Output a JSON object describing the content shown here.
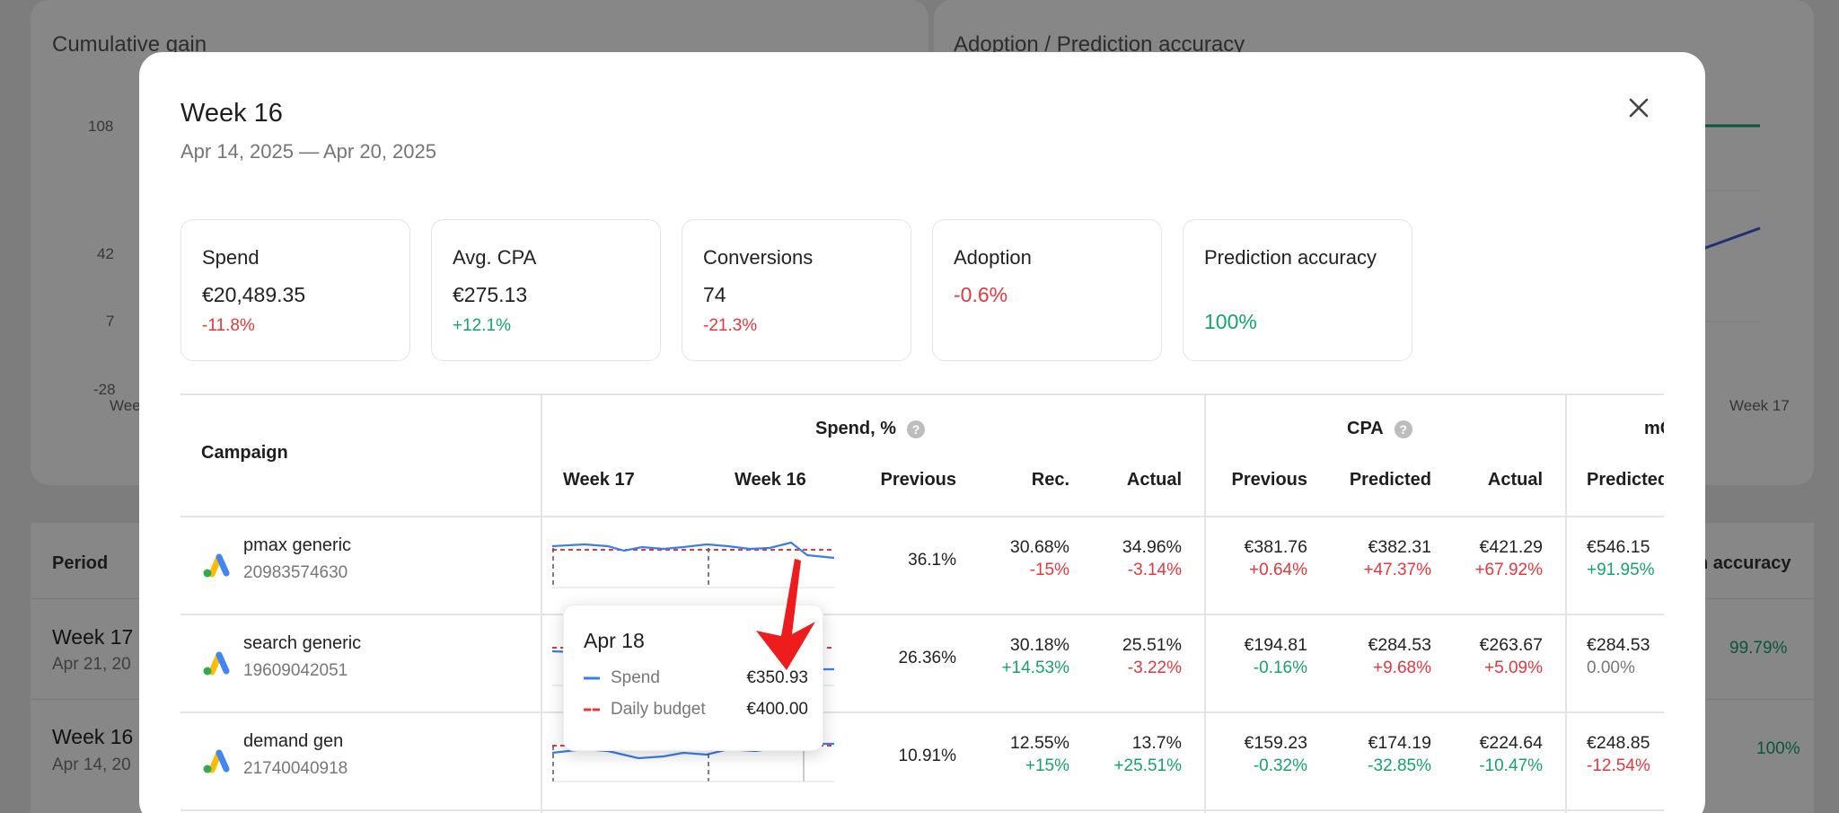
{
  "background": {
    "left_title": "Cumulative gain",
    "right_title": "Adoption / Prediction accuracy",
    "y_ticks": [
      "108",
      "42",
      "7",
      "-28"
    ],
    "x_tick_left": "Wee",
    "x_tick_right": "Week 17",
    "table": {
      "col_period": "Period",
      "col_accuracy": "n accuracy",
      "rows": [
        {
          "title": "Week 17",
          "sub": "Apr 21, 20",
          "accuracy": "99.79%"
        },
        {
          "title": "Week 16",
          "sub": "Apr 14, 20",
          "accuracy": "100%"
        }
      ]
    }
  },
  "modal": {
    "title": "Week 16",
    "subtitle": "Apr 14, 2025 — Apr 20, 2025",
    "kpis": [
      {
        "label": "Spend",
        "value": "€20,489.35",
        "change": "-11.8%"
      },
      {
        "label": "Avg. CPA",
        "value": "€275.13",
        "change": "+12.1%"
      },
      {
        "label": "Conversions",
        "value": "74",
        "change": "-21.3%"
      },
      {
        "label": "Adoption",
        "value": "",
        "change": "-0.6%"
      },
      {
        "label": "Prediction accuracy",
        "value": "",
        "change": "100%"
      }
    ],
    "table": {
      "col_campaign": "Campaign",
      "group_spend": "Spend, %",
      "group_cpa": "CPA",
      "group_third": "mC",
      "help_glyph": "?",
      "sub_headers": {
        "week17": "Week 17",
        "week16": "Week 16",
        "spend_previous": "Previous",
        "spend_rec": "Rec.",
        "spend_actual": "Actual",
        "cpa_previous": "Previous",
        "cpa_predicted": "Predicted",
        "cpa_actual": "Actual",
        "third_predicted": "Predicted"
      },
      "rows": [
        {
          "name": "pmax generic",
          "id": "20983574630",
          "spend_previous": "36.1%",
          "spend_rec": "30.68%",
          "spend_rec_delta": "-15%",
          "spend_actual": "34.96%",
          "spend_actual_delta": "-3.14%",
          "cpa_previous": "€381.76",
          "cpa_previous_delta": "+0.64%",
          "cpa_predicted": "€382.31",
          "cpa_predicted_delta": "+47.37%",
          "cpa_actual": "€421.29",
          "cpa_actual_delta": "+67.92%",
          "third_predicted": "€546.15",
          "third_predicted_delta": "+91.95%"
        },
        {
          "name": "search generic",
          "id": "19609042051",
          "spend_previous": "26.36%",
          "spend_rec": "30.18%",
          "spend_rec_delta": "+14.53%",
          "spend_actual": "25.51%",
          "spend_actual_delta": "-3.22%",
          "cpa_previous": "€194.81",
          "cpa_previous_delta": "-0.16%",
          "cpa_predicted": "€284.53",
          "cpa_predicted_delta": "+9.68%",
          "cpa_actual": "€263.67",
          "cpa_actual_delta": "+5.09%",
          "third_predicted": "€284.53",
          "third_predicted_delta": "0.00%"
        },
        {
          "name": "demand gen",
          "id": "21740040918",
          "spend_previous": "10.91%",
          "spend_rec": "12.55%",
          "spend_rec_delta": "+15%",
          "spend_actual": "13.7%",
          "spend_actual_delta": "+25.51%",
          "cpa_previous": "€159.23",
          "cpa_previous_delta": "-0.32%",
          "cpa_predicted": "€174.19",
          "cpa_predicted_delta": "-32.85%",
          "cpa_actual": "€224.64",
          "cpa_actual_delta": "-10.47%",
          "third_predicted": "€248.85",
          "third_predicted_delta": "-12.54%"
        }
      ]
    },
    "tooltip": {
      "date": "Apr 18",
      "spend_label": "Spend",
      "spend_value": "€350.93",
      "budget_label": "Daily budget",
      "budget_value": "€400.00"
    }
  },
  "colors": {
    "red": "#e5373e",
    "green": "#16a36b",
    "spend_line": "#3b7de8",
    "budget_line": "#e5373e",
    "annotation_arrow": "#ee1c1c"
  }
}
